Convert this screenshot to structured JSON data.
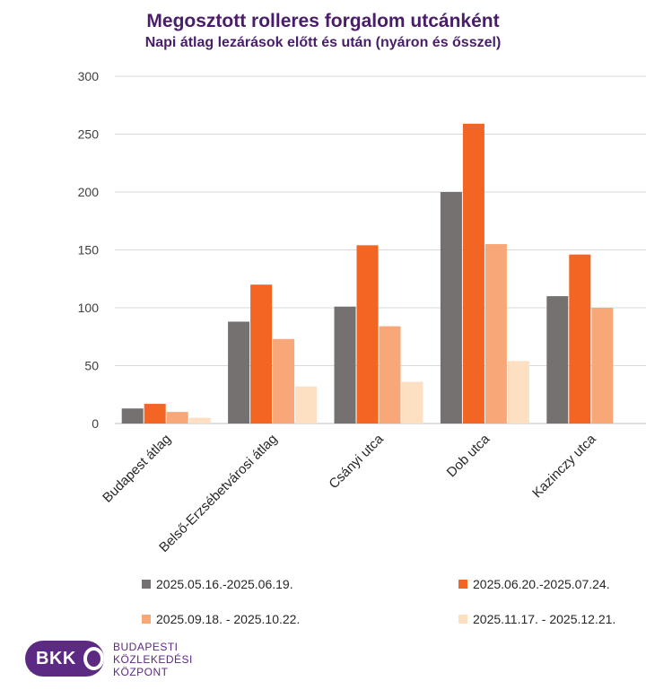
{
  "chart_data": {
    "type": "bar",
    "title": "Megosztott rolleres forgalom utcánként",
    "subtitle": "Napi átlag lezárások előtt és után (nyáron és ősszel)",
    "categories": [
      "Budapest átlag",
      "Belső-Erzsébetvárosi átlag",
      "Csányi utca",
      "Dob utca",
      "Kazinczy utca"
    ],
    "series": [
      {
        "name": "2025.05.16.-2025.06.19.",
        "color": "#767171",
        "values": [
          13,
          88,
          101,
          200,
          110
        ]
      },
      {
        "name": "2025.06.20.-2025.07.24.",
        "color": "#f26522",
        "values": [
          17,
          120,
          154,
          259,
          146
        ]
      },
      {
        "name": "2025.09.18. - 2025.10.22.",
        "color": "#f8a878",
        "values": [
          10,
          73,
          84,
          155,
          100
        ]
      },
      {
        "name": "2025.11.17. - 2025.12.21.",
        "color": "#fde0c2",
        "values": [
          5,
          32,
          36,
          54,
          null
        ]
      }
    ],
    "ylim": [
      0,
      300
    ],
    "yticks": [
      0,
      50,
      100,
      150,
      200,
      250,
      300
    ],
    "grid": true,
    "legend": "bottom"
  },
  "branding": {
    "logo_text": "BKK",
    "org_lines": [
      "BUDAPESTI",
      "KÖZLEKEDÉSI",
      "KÖZPONT"
    ]
  }
}
